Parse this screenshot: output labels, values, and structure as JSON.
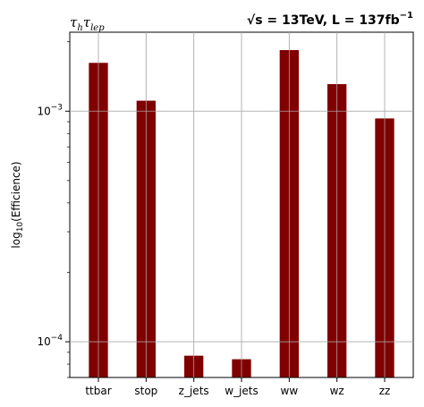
{
  "chart_data": {
    "type": "bar",
    "scale": "log",
    "title_left": "τhτlep",
    "title_left_main": "τ",
    "title_left_sub1": "h",
    "title_left_main2": "τ",
    "title_left_sub2": "lep",
    "title_right": "√s = 13TeV, L = 137fb⁻¹",
    "title_right_parts": {
      "root": "√",
      "s_eq": "s = 13TeV, L = 137fb",
      "exp": "−1"
    },
    "ylabel": "log10(Efficience)",
    "ylabel_parts": {
      "log": "log",
      "sub": "10",
      "rest": "(Efficience)"
    },
    "categories": [
      "ttbar",
      "stop",
      "z_jets",
      "w_jets",
      "ww",
      "wz",
      "zz"
    ],
    "values": [
      0.00162,
      0.00111,
      8.7e-05,
      8.4e-05,
      0.00184,
      0.00131,
      0.00093
    ],
    "ylim": [
      7e-05,
      0.0022
    ],
    "yticks": [
      {
        "value": 0.0001,
        "base": "10",
        "exp": "−4"
      },
      {
        "value": 0.001,
        "base": "10",
        "exp": "−3"
      }
    ],
    "bar_color": "#800000",
    "grid": true
  }
}
